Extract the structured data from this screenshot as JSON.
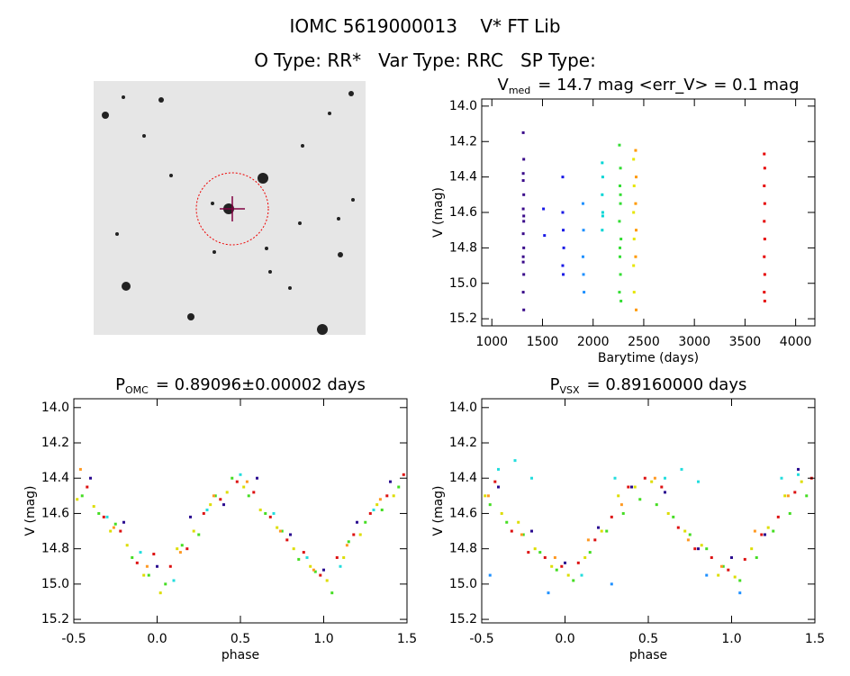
{
  "header": {
    "title": "IOMC 5619000013    V* FT Lib",
    "subtitle": "O Type: RR*   Var Type: RRC   SP Type:"
  },
  "chart_data": [
    {
      "type": "scatter",
      "title": {
        "main": "V",
        "sub": "med",
        "rest": "= 14.7 mag <err_V> = 0.1 mag"
      },
      "xlabel": "Barytime (days)",
      "ylabel": "V (mag)",
      "xlim": [
        900,
        4190
      ],
      "ylim": [
        13.96,
        15.24
      ],
      "y_reversed": true,
      "xticks": [
        1000,
        1500,
        2000,
        2500,
        3000,
        3500,
        4000
      ],
      "yticks": [
        {
          "value": 14,
          "label": "14.0"
        },
        14.2,
        14.4,
        14.6,
        14.8,
        {
          "value": 15,
          "label": "15.0"
        },
        15.2
      ],
      "series": [
        {
          "color": "#3a0a8a",
          "x": [
            1310,
            1315,
            1310,
            1315,
            1310,
            1315,
            1310,
            1315,
            1310,
            1315,
            1310,
            1315,
            1310,
            1315,
            1310
          ],
          "values": [
            14.15,
            14.3,
            14.42,
            14.5,
            14.58,
            14.65,
            14.72,
            14.8,
            14.88,
            14.95,
            15.05,
            15.15,
            14.38,
            14.62,
            14.85
          ]
        },
        {
          "color": "#1a1ae6",
          "x": [
            1510,
            1520,
            1700,
            1700,
            1705,
            1710,
            1700,
            1705
          ],
          "values": [
            14.58,
            14.73,
            14.4,
            14.6,
            14.7,
            14.8,
            14.9,
            14.95
          ]
        },
        {
          "color": "#1e90ff",
          "x": [
            1900,
            1905,
            1900,
            1905,
            1910
          ],
          "values": [
            14.55,
            14.7,
            14.85,
            14.95,
            15.05
          ]
        },
        {
          "color": "#00d5d5",
          "x": [
            2090,
            2095,
            2090,
            2095,
            2090,
            2095
          ],
          "values": [
            14.32,
            14.4,
            14.5,
            14.6,
            14.7,
            14.62
          ]
        },
        {
          "color": "#33dd33",
          "x": [
            2260,
            2270,
            2265,
            2270,
            2260,
            2275,
            2265,
            2270,
            2260,
            2275,
            2270,
            2265
          ],
          "values": [
            14.22,
            14.35,
            14.45,
            14.55,
            14.65,
            14.75,
            14.85,
            14.95,
            15.05,
            15.1,
            14.5,
            14.8
          ]
        },
        {
          "color": "#e6e600",
          "x": [
            2400,
            2405,
            2400,
            2405,
            2400,
            2405
          ],
          "values": [
            14.3,
            14.45,
            14.6,
            14.75,
            14.9,
            15.05
          ]
        },
        {
          "color": "#ff9900",
          "x": [
            2420,
            2425,
            2420,
            2425,
            2420,
            2425
          ],
          "values": [
            14.25,
            14.4,
            14.55,
            14.7,
            14.85,
            15.15
          ]
        },
        {
          "color": "#e60000",
          "x": [
            3690,
            3695,
            3690,
            3695,
            3690,
            3695,
            3690,
            3695,
            3690,
            3695
          ],
          "values": [
            14.27,
            14.35,
            14.45,
            14.55,
            14.65,
            14.75,
            14.85,
            14.95,
            15.05,
            15.1
          ]
        }
      ]
    },
    {
      "type": "scatter",
      "title": {
        "main": "P",
        "sub": "OMC",
        "rest": "= 0.89096±0.00002 days"
      },
      "xlabel": "phase",
      "ylabel": "V (mag)",
      "xlim": [
        -0.5,
        1.5
      ],
      "ylim": [
        13.95,
        15.22
      ],
      "y_reversed": true,
      "xticks": [
        -0.5,
        {
          "value": 0,
          "label": "0.0"
        },
        0.5,
        {
          "value": 1,
          "label": "1.0"
        },
        1.5
      ],
      "yticks": [
        {
          "value": 14,
          "label": "14.0"
        },
        14.2,
        14.4,
        14.6,
        14.8,
        {
          "value": 15,
          "label": "15.0"
        },
        15.2
      ],
      "series": [
        {
          "color": "#44dd22",
          "x": [
            -0.45,
            -0.35,
            -0.25,
            -0.15,
            -0.05,
            0.05,
            0.15,
            0.25,
            0.35,
            0.45,
            0.55,
            0.65,
            0.75,
            0.85,
            0.95,
            1.05,
            1.15,
            1.25,
            1.35,
            1.45
          ],
          "values": [
            14.5,
            14.6,
            14.66,
            14.85,
            14.95,
            15.0,
            14.78,
            14.72,
            14.5,
            14.4,
            14.5,
            14.6,
            14.7,
            14.86,
            14.93,
            15.05,
            14.76,
            14.65,
            14.58,
            14.45
          ]
        },
        {
          "color": "#dd1111",
          "x": [
            -0.42,
            -0.32,
            -0.22,
            -0.12,
            -0.02,
            0.08,
            0.18,
            0.28,
            0.38,
            0.48,
            0.58,
            0.68,
            0.78,
            0.88,
            0.98,
            1.08,
            1.18,
            1.28,
            1.38,
            1.48
          ],
          "values": [
            14.45,
            14.62,
            14.7,
            14.88,
            14.83,
            14.9,
            14.8,
            14.6,
            14.52,
            14.42,
            14.48,
            14.62,
            14.75,
            14.82,
            14.95,
            14.85,
            14.72,
            14.6,
            14.5,
            14.38
          ]
        },
        {
          "color": "#dddd00",
          "x": [
            -0.48,
            -0.38,
            -0.28,
            -0.18,
            -0.08,
            0.02,
            0.12,
            0.22,
            0.32,
            0.42,
            0.52,
            0.62,
            0.72,
            0.82,
            0.92,
            1.02,
            1.12,
            1.22,
            1.32,
            1.42
          ],
          "values": [
            14.52,
            14.56,
            14.7,
            14.78,
            14.95,
            15.05,
            14.8,
            14.7,
            14.55,
            14.48,
            14.45,
            14.58,
            14.68,
            14.8,
            14.9,
            14.98,
            14.85,
            14.72,
            14.55,
            14.5
          ]
        },
        {
          "color": "#2a0a90",
          "x": [
            -0.4,
            -0.2,
            0.0,
            0.2,
            0.4,
            0.6,
            0.8,
            1.0,
            1.2,
            1.4
          ],
          "values": [
            14.4,
            14.65,
            14.9,
            14.62,
            14.55,
            14.4,
            14.72,
            14.92,
            14.65,
            14.42
          ]
        },
        {
          "color": "#22dddd",
          "x": [
            -0.3,
            -0.1,
            0.1,
            0.3,
            0.5,
            0.7,
            0.9,
            1.1,
            1.3
          ],
          "values": [
            14.62,
            14.82,
            14.98,
            14.58,
            14.38,
            14.6,
            14.85,
            14.9,
            14.58
          ]
        },
        {
          "color": "#ff9922",
          "x": [
            -0.46,
            -0.26,
            -0.06,
            0.14,
            0.34,
            0.54,
            0.74,
            0.94,
            1.14,
            1.34
          ],
          "values": [
            14.35,
            14.68,
            14.9,
            14.82,
            14.5,
            14.42,
            14.7,
            14.92,
            14.78,
            14.52
          ]
        }
      ]
    },
    {
      "type": "scatter",
      "title": {
        "main": "P",
        "sub": "VSX",
        "rest": "= 0.89160000 days"
      },
      "xlabel": "phase",
      "ylabel": "V (mag)",
      "xlim": [
        -0.5,
        1.5
      ],
      "ylim": [
        13.95,
        15.22
      ],
      "y_reversed": true,
      "xticks": [
        -0.5,
        {
          "value": 0,
          "label": "0.0"
        },
        0.5,
        {
          "value": 1,
          "label": "1.0"
        },
        1.5
      ],
      "yticks": [
        {
          "value": 14,
          "label": "14.0"
        },
        14.2,
        14.4,
        14.6,
        14.8,
        {
          "value": 15,
          "label": "15.0"
        },
        15.2
      ],
      "series": [
        {
          "color": "#44dd22",
          "x": [
            -0.45,
            -0.35,
            -0.25,
            -0.15,
            -0.05,
            0.05,
            0.15,
            0.25,
            0.35,
            0.45,
            0.55,
            0.65,
            0.75,
            0.85,
            0.95,
            1.05,
            1.15,
            1.25,
            1.35,
            1.45
          ],
          "values": [
            14.55,
            14.65,
            14.72,
            14.82,
            14.92,
            14.98,
            14.82,
            14.7,
            14.6,
            14.52,
            14.55,
            14.62,
            14.72,
            14.8,
            14.9,
            14.98,
            14.85,
            14.7,
            14.6,
            14.5
          ]
        },
        {
          "color": "#dd1111",
          "x": [
            -0.42,
            -0.32,
            -0.22,
            -0.12,
            -0.02,
            0.08,
            0.18,
            0.28,
            0.38,
            0.48,
            0.58,
            0.68,
            0.78,
            0.88,
            0.98,
            1.08,
            1.18,
            1.28,
            1.38,
            1.48
          ],
          "values": [
            14.42,
            14.7,
            14.82,
            14.85,
            14.9,
            14.88,
            14.75,
            14.62,
            14.45,
            14.4,
            14.45,
            14.68,
            14.8,
            14.85,
            14.92,
            14.86,
            14.72,
            14.62,
            14.48,
            14.4
          ]
        },
        {
          "color": "#dddd00",
          "x": [
            -0.48,
            -0.38,
            -0.28,
            -0.18,
            -0.08,
            0.02,
            0.12,
            0.22,
            0.32,
            0.42,
            0.52,
            0.62,
            0.72,
            0.82,
            0.92,
            1.02,
            1.12,
            1.22,
            1.32,
            1.42
          ],
          "values": [
            14.5,
            14.6,
            14.65,
            14.8,
            14.9,
            14.95,
            14.85,
            14.7,
            14.5,
            14.45,
            14.42,
            14.6,
            14.7,
            14.78,
            14.95,
            14.96,
            14.8,
            14.68,
            14.5,
            14.42
          ]
        },
        {
          "color": "#2a0a90",
          "x": [
            -0.4,
            -0.2,
            0.0,
            0.2,
            0.4,
            0.6,
            0.8,
            1.0,
            1.2,
            1.4
          ],
          "values": [
            14.45,
            14.7,
            14.88,
            14.68,
            14.45,
            14.48,
            14.8,
            14.85,
            14.72,
            14.35
          ]
        },
        {
          "color": "#22dddd",
          "x": [
            -0.4,
            -0.3,
            -0.2,
            0.1,
            0.3,
            0.6,
            0.7,
            0.8,
            1.3,
            1.4
          ],
          "values": [
            14.35,
            14.3,
            14.4,
            14.95,
            14.4,
            14.4,
            14.35,
            14.42,
            14.4,
            14.38
          ]
        },
        {
          "color": "#1e90ff",
          "x": [
            -0.45,
            -0.1,
            0.28,
            0.85,
            1.05
          ],
          "values": [
            14.95,
            15.05,
            15.0,
            14.95,
            15.05
          ]
        },
        {
          "color": "#ff9922",
          "x": [
            -0.46,
            -0.26,
            -0.06,
            0.14,
            0.34,
            0.54,
            0.74,
            0.94,
            1.14,
            1.34
          ],
          "values": [
            14.5,
            14.72,
            14.85,
            14.75,
            14.55,
            14.4,
            14.75,
            14.9,
            14.7,
            14.5
          ]
        }
      ]
    }
  ]
}
